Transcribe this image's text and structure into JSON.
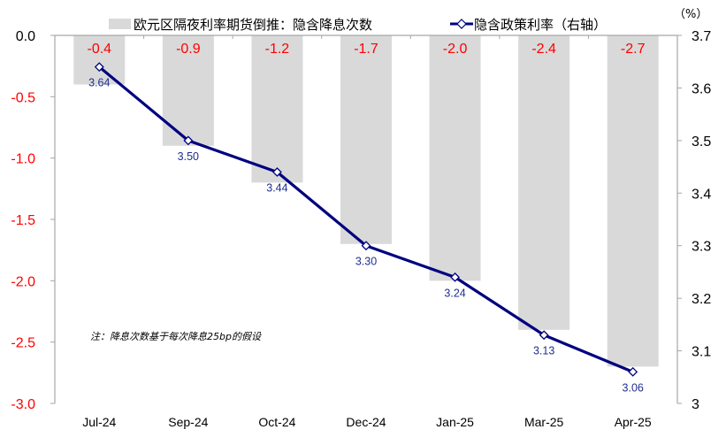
{
  "chart_data": {
    "type": "bar+line",
    "title": "",
    "categories": [
      "Jul-24",
      "Sep-24",
      "Oct-24",
      "Dec-24",
      "Jan-25",
      "Mar-25",
      "Apr-25"
    ],
    "series": [
      {
        "name": "欧元区隔夜利率期货倒推：隐含降息次数",
        "type": "bar",
        "axis": "left",
        "color": "#d9d9d9",
        "values": [
          -0.4,
          -0.9,
          -1.2,
          -1.7,
          -2.0,
          -2.4,
          -2.7
        ],
        "labels": [
          "-0.4",
          "-0.9",
          "-1.2",
          "-1.7",
          "-2.0",
          "-2.4",
          "-2.7"
        ],
        "label_color": "#ff0000"
      },
      {
        "name": "隐含政策利率（右轴）",
        "type": "line",
        "axis": "right",
        "color": "#000080",
        "marker": "diamond-hollow",
        "values": [
          3.64,
          3.5,
          3.44,
          3.3,
          3.24,
          3.13,
          3.06
        ],
        "labels": [
          "3.64",
          "3.50",
          "3.44",
          "3.30",
          "3.24",
          "3.13",
          "3.06"
        ],
        "label_color": "#1f2f8f"
      }
    ],
    "left_axis": {
      "ylim": [
        -3.0,
        0.0
      ],
      "ticks": [
        "0.0",
        "-0.5",
        "-1.0",
        "-1.5",
        "-2.0",
        "-2.5",
        "-3.0"
      ],
      "tick_values": [
        0.0,
        -0.5,
        -1.0,
        -1.5,
        -2.0,
        -2.5,
        -3.0
      ],
      "tick_color_negative": "#ff0000",
      "tick_color_zero": "#000000"
    },
    "right_axis": {
      "unit": "（%）",
      "ylim": [
        3.0,
        3.7
      ],
      "ticks": [
        "3.7",
        "3.6",
        "3.5",
        "3.4",
        "3.3",
        "3.2",
        "3.1",
        "3"
      ],
      "tick_values": [
        3.7,
        3.6,
        3.5,
        3.4,
        3.3,
        3.2,
        3.1,
        3.0
      ]
    },
    "xlabel": "",
    "ylabel": "",
    "grid": false,
    "legend_position": "top",
    "annotation": "注：降息次数基于每次降息25bp的假设"
  },
  "legend": {
    "bar_label": "欧元区隔夜利率期货倒推：隐含降息次数",
    "line_label": "隐含政策利率（右轴）"
  },
  "note": "注：降息次数基于每次降息25bp的假设",
  "right_unit": "（%）"
}
